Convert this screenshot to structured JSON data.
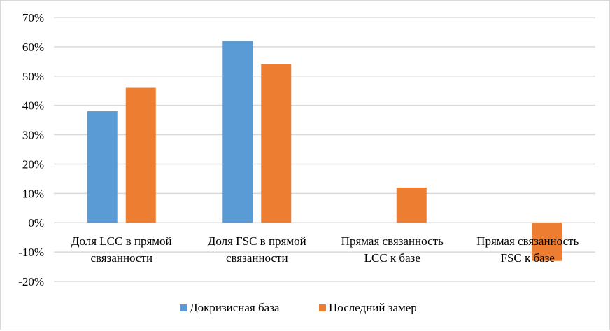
{
  "chart_data": {
    "type": "bar",
    "title": "",
    "xlabel": "",
    "ylabel": "",
    "categories": [
      [
        "Доля LCC в прямой",
        "связанности"
      ],
      [
        "Доля FSC в прямой",
        "связанности"
      ],
      [
        "Прямая связанность",
        "LCC к базе"
      ],
      [
        "Прямая связанность",
        "FSC к базе"
      ]
    ],
    "series": [
      {
        "name": "Докризисная база",
        "color": "#5b9bd5",
        "values": [
          0.38,
          0.62,
          0,
          0
        ]
      },
      {
        "name": "Последний замер",
        "color": "#ed7d31",
        "values": [
          0.46,
          0.54,
          0.12,
          -0.13
        ]
      }
    ],
    "ylim": [
      -0.2,
      0.7
    ],
    "yticks": [
      "-20%",
      "-10%",
      "0%",
      "10%",
      "20%",
      "30%",
      "40%",
      "50%",
      "60%",
      "70%"
    ],
    "grid": true,
    "legend": "bottom"
  }
}
